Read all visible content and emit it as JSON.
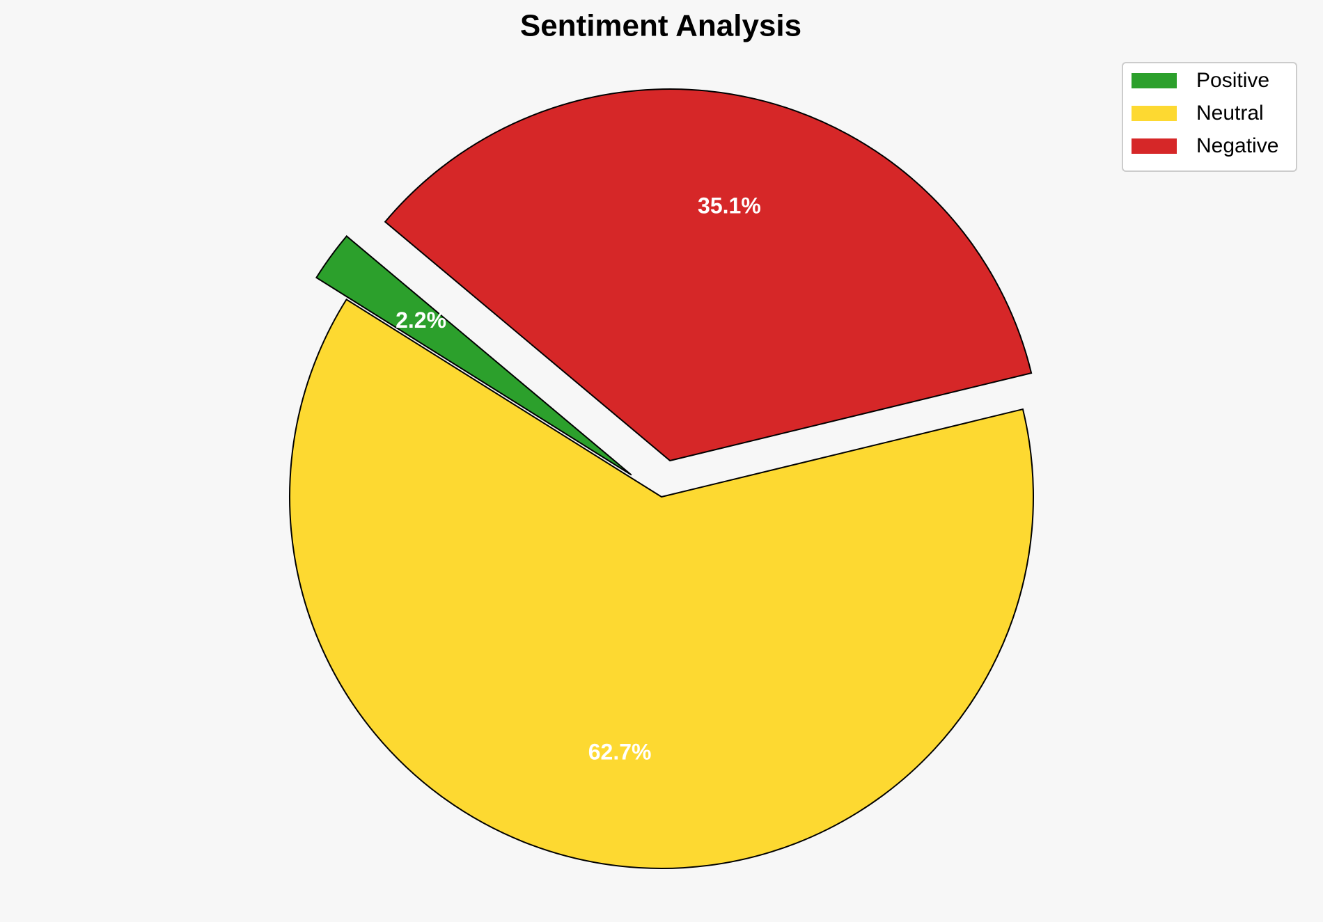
{
  "chart_data": {
    "type": "pie",
    "title": "Sentiment Analysis",
    "categories": [
      "Positive",
      "Neutral",
      "Negative"
    ],
    "values": [
      2.2,
      62.7,
      35.1
    ],
    "value_labels": [
      "2.2%",
      "62.7%",
      "35.1%"
    ],
    "colors": [
      "#2ca02c",
      "#fdd931",
      "#d62728"
    ],
    "legend": "upper right"
  }
}
